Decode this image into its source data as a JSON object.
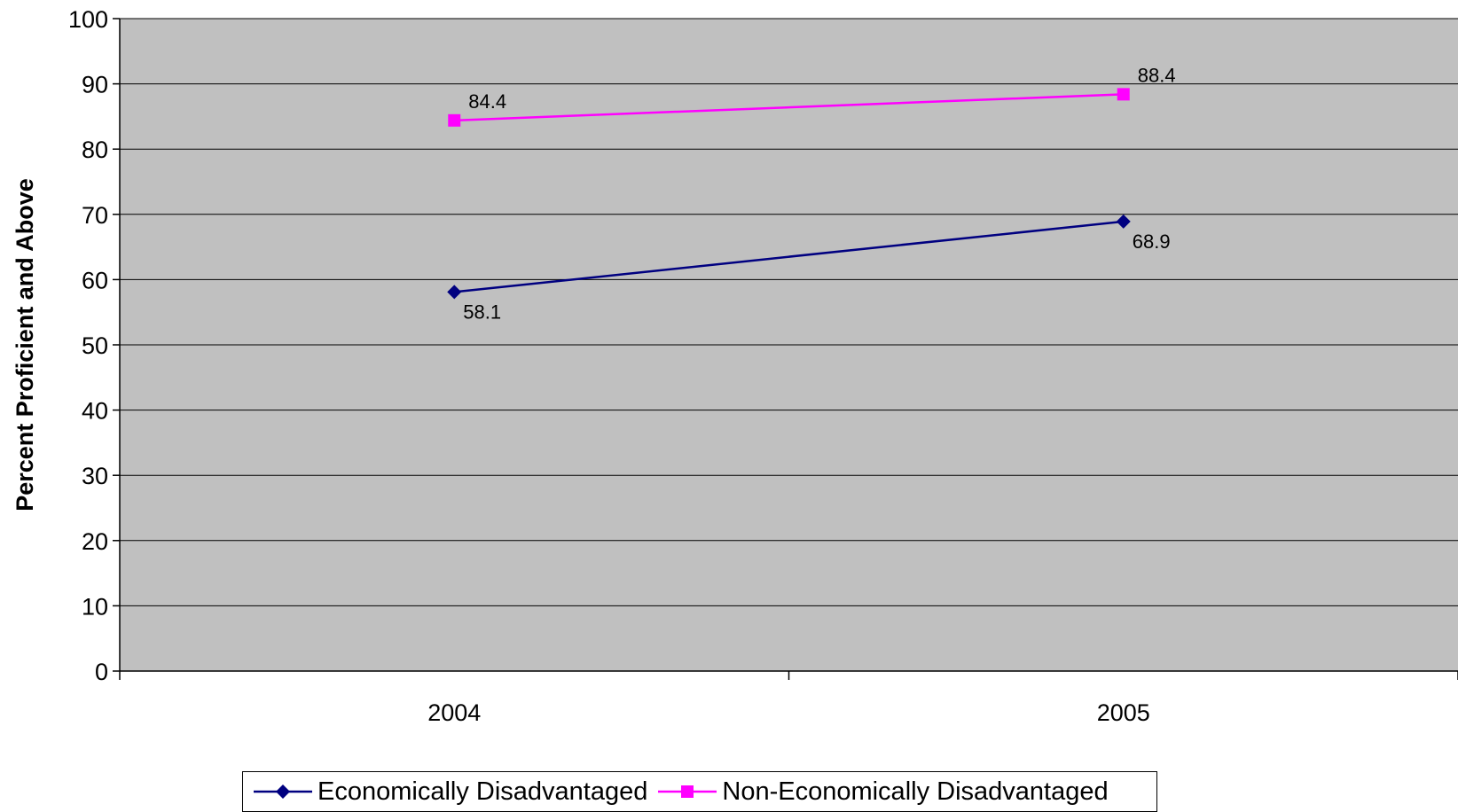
{
  "chart_data": {
    "type": "line",
    "title": "",
    "xlabel": "",
    "ylabel": "Percent Proficient and Above",
    "categories": [
      "2004",
      "2005"
    ],
    "ylim": [
      0,
      100
    ],
    "yticks": [
      "0",
      "10",
      "20",
      "30",
      "40",
      "50",
      "60",
      "70",
      "80",
      "90",
      "100"
    ],
    "grid": true,
    "plot_background": "#C0C0C0",
    "legend_position": "bottom",
    "series": [
      {
        "name": "Economically Disadvantaged",
        "values": [
          58.1,
          68.9
        ],
        "labels": [
          "58.1",
          "68.9"
        ],
        "color": "#000080",
        "marker": "diamond"
      },
      {
        "name": "Non-Economically Disadvantaged",
        "values": [
          84.4,
          88.4
        ],
        "labels": [
          "84.4",
          "88.4"
        ],
        "color": "#FF00FF",
        "marker": "square"
      }
    ]
  }
}
